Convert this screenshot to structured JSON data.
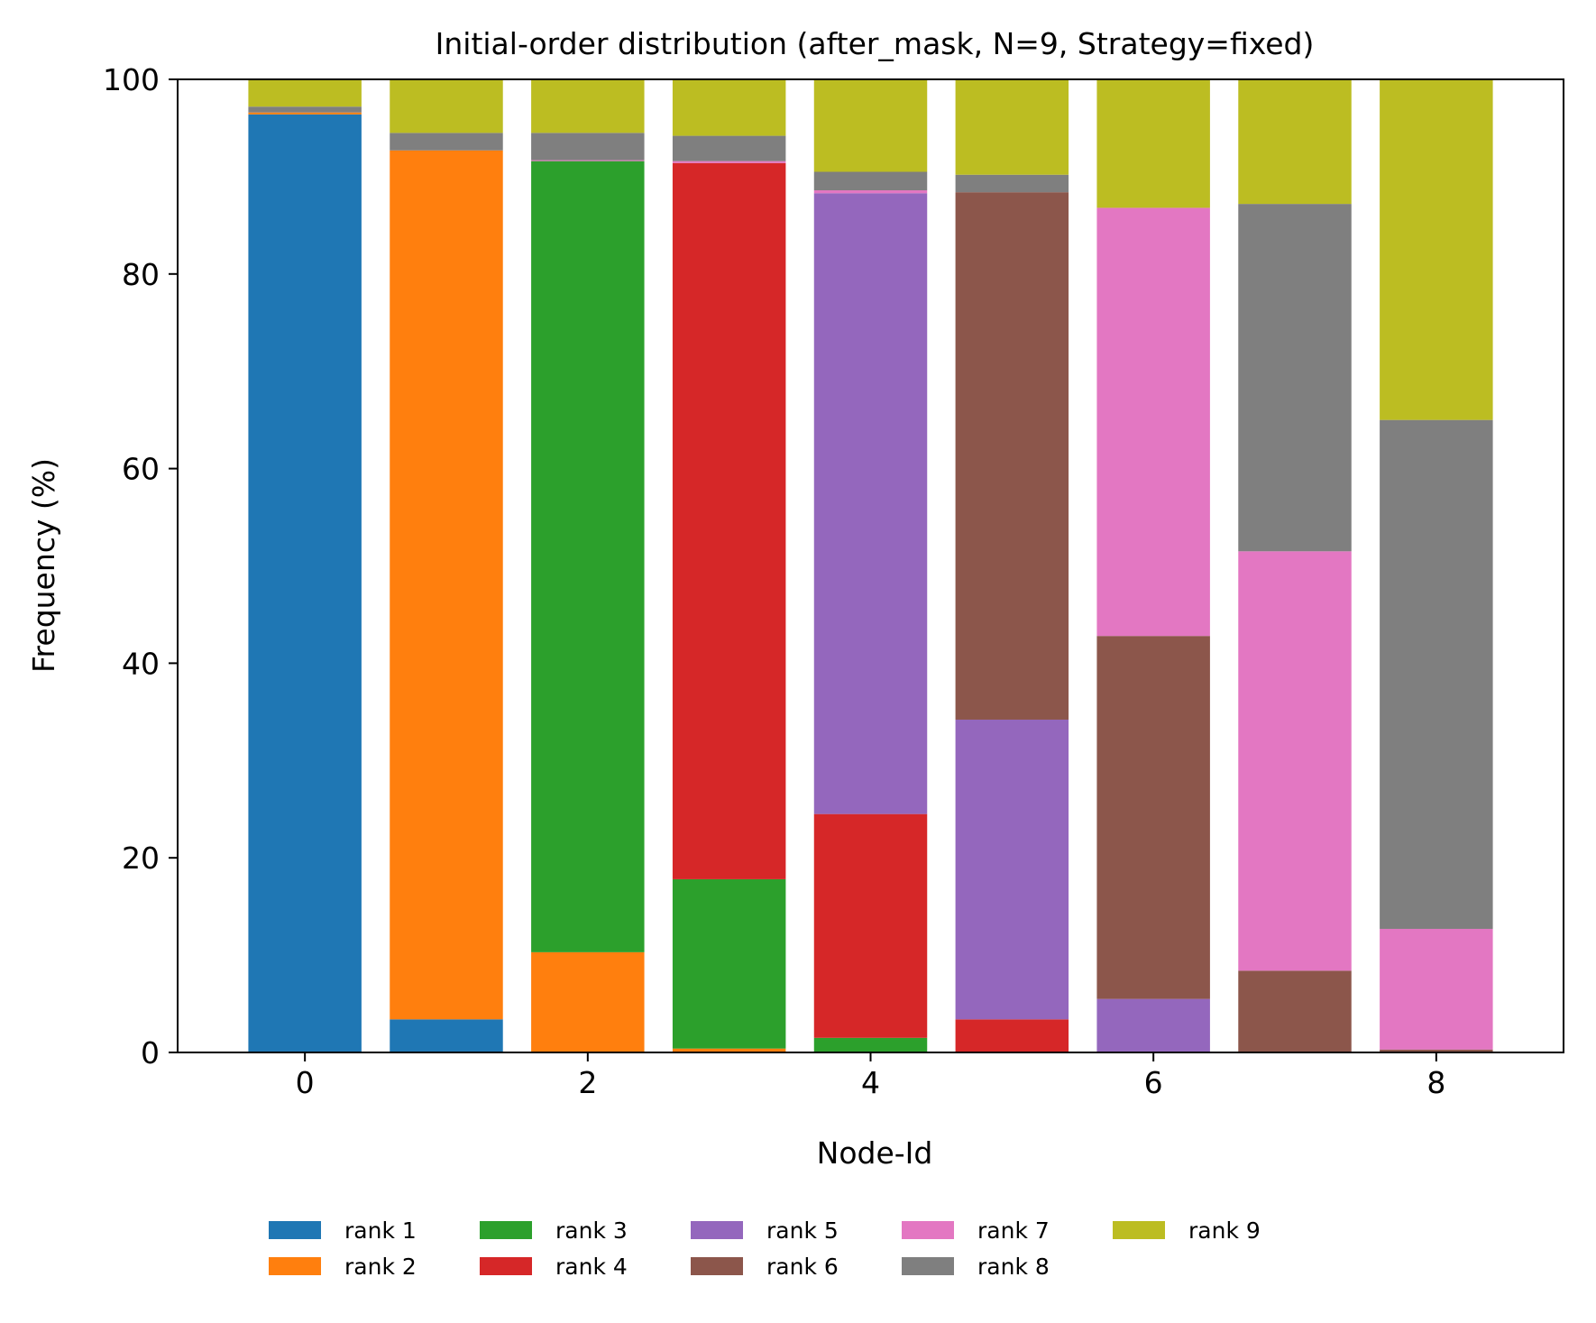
{
  "chart_data": {
    "type": "bar",
    "stacked": true,
    "title": "Initial-order distribution (after_mask, N=9, Strategy=fixed)",
    "xlabel": "Node-Id",
    "ylabel": "Frequency (%)",
    "ylim": [
      0,
      100
    ],
    "xlim": [
      -0.9,
      8.9
    ],
    "x": [
      0,
      1,
      2,
      3,
      4,
      5,
      6,
      7,
      8
    ],
    "xticks": [
      0,
      2,
      4,
      6,
      8
    ],
    "yticks": [
      0,
      20,
      40,
      60,
      80,
      100
    ],
    "grid": false,
    "legend_position": "bottom-center",
    "series": [
      {
        "name": "rank 1",
        "color": "#1f77b4",
        "values": [
          96.4,
          3.4,
          0,
          0,
          0,
          0,
          0,
          0,
          0
        ]
      },
      {
        "name": "rank 2",
        "color": "#ff7f0e",
        "values": [
          0.2,
          89.3,
          10.3,
          0.4,
          0,
          0,
          0,
          0,
          0
        ]
      },
      {
        "name": "rank 3",
        "color": "#2ca02c",
        "values": [
          0,
          0,
          81.3,
          17.4,
          1.5,
          0,
          0,
          0,
          0
        ]
      },
      {
        "name": "rank 4",
        "color": "#d62728",
        "values": [
          0,
          0,
          0,
          73.6,
          23.0,
          3.4,
          0,
          0,
          0
        ]
      },
      {
        "name": "rank 5",
        "color": "#9467bd",
        "values": [
          0,
          0,
          0,
          0,
          63.8,
          30.8,
          5.5,
          0,
          0
        ]
      },
      {
        "name": "rank 6",
        "color": "#8c564b",
        "values": [
          0,
          0,
          0,
          0,
          0,
          54.2,
          37.3,
          8.4,
          0.3
        ]
      },
      {
        "name": "rank 7",
        "color": "#e377c2",
        "values": [
          0,
          0,
          0.1,
          0.2,
          0.3,
          0,
          44.0,
          43.1,
          12.4
        ]
      },
      {
        "name": "rank 8",
        "color": "#7f7f7f",
        "values": [
          0.6,
          1.8,
          2.8,
          2.6,
          1.9,
          1.8,
          0,
          35.7,
          52.3
        ]
      },
      {
        "name": "rank 9",
        "color": "#bcbd22",
        "values": [
          2.8,
          5.5,
          5.5,
          5.8,
          9.5,
          9.8,
          13.2,
          12.8,
          35.0
        ]
      }
    ]
  }
}
